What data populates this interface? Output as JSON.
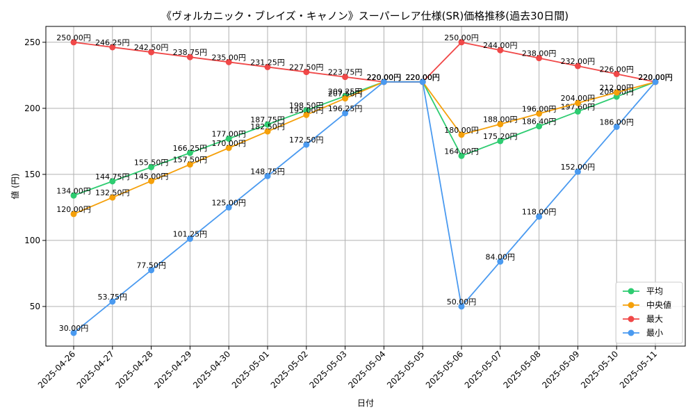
{
  "chart_data": {
    "type": "line",
    "title": "《ヴォルカニック・ブレイズ・キャノン》スーパーレア仕様(SR)価格推移(過去30日間)",
    "xlabel": "日付",
    "ylabel": "値 (円)",
    "x": [
      "2025-04-26",
      "2025-04-27",
      "2025-04-28",
      "2025-04-29",
      "2025-04-30",
      "2025-05-01",
      "2025-05-02",
      "2025-05-03",
      "2025-05-04",
      "2025-05-05",
      "2025-05-06",
      "2025-05-07",
      "2025-05-08",
      "2025-05-09",
      "2025-05-10",
      "2025-05-11"
    ],
    "ylim": [
      20,
      262
    ],
    "yticks": [
      50,
      100,
      150,
      200,
      250
    ],
    "grid": true,
    "legend_position": "lower-right",
    "value_suffix": "円",
    "series": [
      {
        "name": "平均",
        "color": "#2ecc71",
        "values": [
          134.0,
          144.75,
          155.5,
          166.25,
          177.0,
          187.75,
          198.5,
          209.25,
          220.0,
          220.0,
          164.0,
          175.2,
          186.4,
          197.6,
          208.8,
          220.0
        ]
      },
      {
        "name": "中央値",
        "color": "#f5a00a",
        "values": [
          120.0,
          132.5,
          145.0,
          157.5,
          170.0,
          182.5,
          195.0,
          207.5,
          220.0,
          220.0,
          180.0,
          188.0,
          196.0,
          204.0,
          212.0,
          220.0
        ]
      },
      {
        "name": "最大",
        "color": "#f04848",
        "values": [
          250.0,
          246.25,
          242.5,
          238.75,
          235.0,
          231.25,
          227.5,
          223.75,
          220.0,
          220.0,
          250.0,
          244.0,
          238.0,
          232.0,
          226.0,
          220.0
        ]
      },
      {
        "name": "最小",
        "color": "#4a9af0",
        "values": [
          30.0,
          53.75,
          77.5,
          101.25,
          125.0,
          148.75,
          172.5,
          196.25,
          220.0,
          220.0,
          50.0,
          84.0,
          118.0,
          152.0,
          186.0,
          220.0
        ]
      }
    ]
  }
}
